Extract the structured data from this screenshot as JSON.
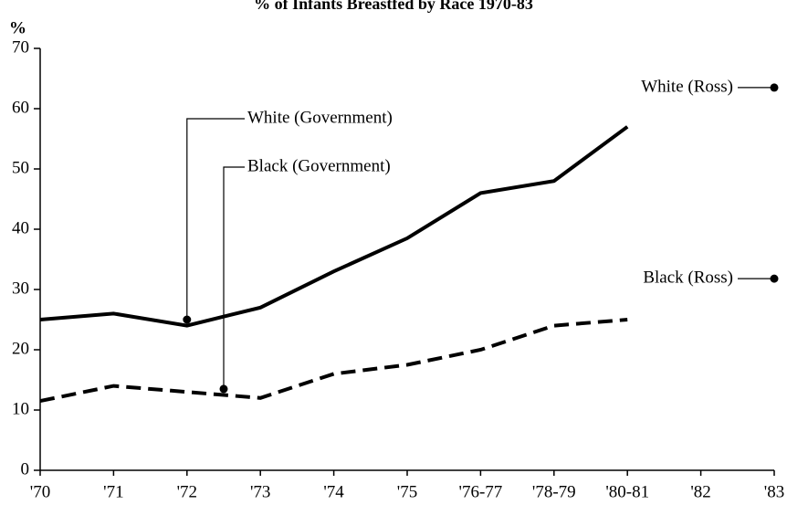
{
  "chart_data": {
    "type": "line",
    "title": "% of Infants Breastfed by Race 1970-83",
    "y_label": "%",
    "categories": [
      "'70",
      "'71",
      "'72",
      "'73",
      "'74",
      "'75",
      "'76-77",
      "'78-79",
      "'80-81",
      "'82",
      "'83"
    ],
    "ylim": [
      0,
      70
    ],
    "yticks": [
      0,
      10,
      20,
      30,
      40,
      50,
      60,
      70
    ],
    "series": [
      {
        "name": "White (Government)",
        "color": "#000000",
        "dashed": false,
        "pointer": [
          2,
          25
        ],
        "values": [
          25,
          26,
          24,
          27,
          33,
          38.5,
          46,
          48,
          57,
          null,
          null
        ]
      },
      {
        "name": "Black (Government)",
        "color": "#000000",
        "dashed": true,
        "pointer": [
          2.5,
          13.5
        ],
        "values": [
          11.5,
          14,
          13,
          12,
          16,
          17.5,
          20,
          24,
          25,
          null,
          null
        ]
      },
      {
        "name": "White (Ross)",
        "color": "#000000",
        "dashed": false,
        "values": [
          null,
          null,
          null,
          null,
          null,
          null,
          null,
          null,
          null,
          null,
          63.5
        ]
      },
      {
        "name": "Black (Ross)",
        "color": "#000000",
        "dashed": false,
        "values": [
          null,
          null,
          null,
          null,
          null,
          null,
          null,
          null,
          null,
          null,
          31.8
        ]
      }
    ]
  }
}
